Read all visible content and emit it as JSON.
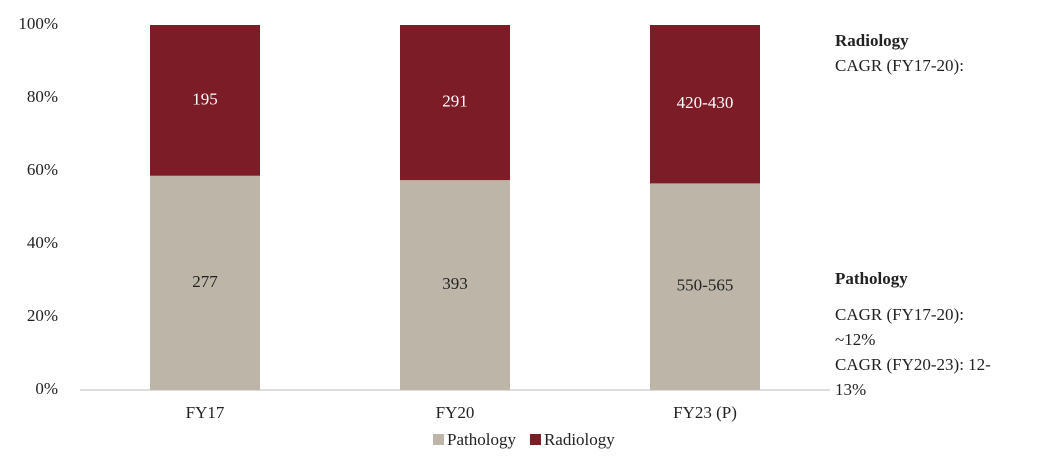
{
  "chart_data": {
    "type": "bar",
    "stacked": true,
    "categories": [
      "FY17",
      "FY20",
      "FY23 (P)"
    ],
    "series": [
      {
        "name": "Pathology",
        "color": "#bdb5a8",
        "values": [
          58.7,
          57.5,
          56.6
        ],
        "labels": [
          "277",
          "393",
          "550-565"
        ]
      },
      {
        "name": "Radiology",
        "color": "#7b1c27",
        "values": [
          41.3,
          42.5,
          43.4
        ],
        "labels": [
          "195",
          "291",
          "420-430"
        ]
      }
    ],
    "ylim": [
      0,
      100
    ],
    "yticks": [
      {
        "value": 0,
        "label": "0%"
      },
      {
        "value": 20,
        "label": "20%"
      },
      {
        "value": 40,
        "label": "40%"
      },
      {
        "value": 60,
        "label": "60%"
      },
      {
        "value": 80,
        "label": "80%"
      },
      {
        "value": 100,
        "label": "100%"
      }
    ],
    "grid": false,
    "legend": "bottom",
    "annotations": [
      {
        "title": "Radiology",
        "lines": [
          "CAGR (FY17-20):"
        ]
      },
      {
        "title": "Pathology",
        "lines": [
          "CAGR (FY17-20):",
          "~12%",
          "CAGR (FY20-23): 12-",
          "13%"
        ]
      }
    ]
  }
}
